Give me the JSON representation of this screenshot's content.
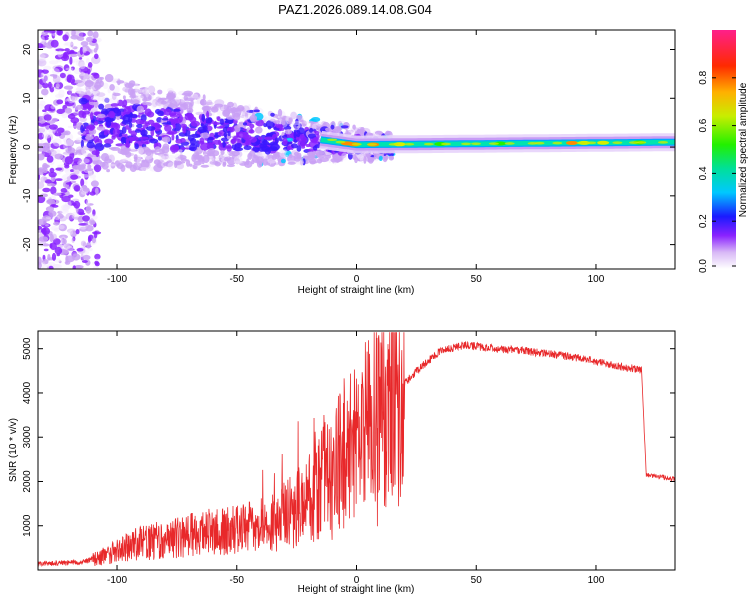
{
  "title": "PAZ1.2026.089.14.08.G04",
  "chart_data": [
    {
      "type": "heatmap",
      "name": "spectrogram",
      "xlabel": "Height of straight line (km)",
      "ylabel": "Frequency (Hz)",
      "xlim": [
        -133,
        133
      ],
      "ylim": [
        -25,
        24
      ],
      "xticks": [
        -100,
        -50,
        0,
        50,
        100
      ],
      "yticks": [
        -20,
        -10,
        0,
        10,
        20
      ],
      "xtick_labels": [
        "-100",
        "-50",
        "0",
        "50",
        "100"
      ],
      "ytick_labels": [
        "-20",
        "-10",
        "0",
        "10",
        "20"
      ],
      "colorbar": {
        "label": "Normalized spectral amplitude",
        "range": [
          0.0,
          1.0
        ],
        "ticks": [
          0.0,
          0.2,
          0.4,
          0.6,
          0.8
        ],
        "tick_labels": [
          "0.0",
          "0.2",
          "0.4",
          "0.6",
          "0.8"
        ]
      },
      "carrier_track": {
        "x_start": -15,
        "x_end": 133,
        "frequency_start": 1.5,
        "frequency_mid": 0.5,
        "frequency_end": 1.0
      }
    },
    {
      "type": "line",
      "name": "snr",
      "xlabel": "Height of straight line (km)",
      "ylabel": "SNR (10 * v/v)",
      "xlim": [
        -133,
        133
      ],
      "ylim": [
        0,
        5400
      ],
      "xticks": [
        -100,
        -50,
        0,
        50,
        100
      ],
      "yticks": [
        1000,
        2000,
        3000,
        4000,
        5000
      ],
      "xtick_labels": [
        "-100",
        "-50",
        "0",
        "50",
        "100"
      ],
      "ytick_labels": [
        "1000",
        "2000",
        "3000",
        "4000",
        "5000"
      ],
      "color": "#e8282a",
      "trend": {
        "x": [
          -133,
          -115,
          -105,
          -95,
          -80,
          -60,
          -40,
          -30,
          -22,
          -15,
          -8,
          0,
          5,
          15,
          25,
          35,
          45,
          55,
          70,
          85,
          95,
          105,
          119,
          121,
          125,
          133
        ],
        "y": [
          150,
          170,
          320,
          550,
          700,
          850,
          1000,
          1200,
          1500,
          1900,
          2400,
          2900,
          3400,
          3900,
          4500,
          4950,
          5080,
          5020,
          4950,
          4850,
          4780,
          4650,
          4520,
          2150,
          2120,
          2050
        ]
      }
    }
  ]
}
